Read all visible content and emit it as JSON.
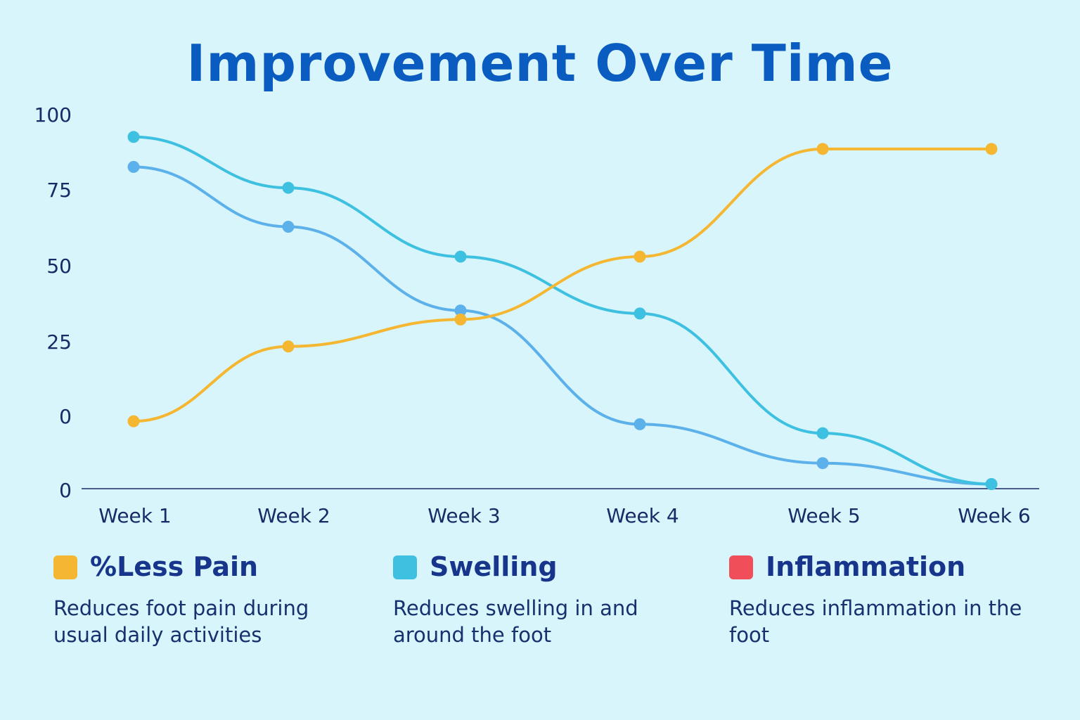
{
  "colors": {
    "pain": "#f5b731",
    "swelling": "#3ec0e0",
    "inflammation": "#f04f5a",
    "third_line": "#5db1ea",
    "axis": "#1a2a66",
    "title": "#0b5cc0"
  },
  "legend": [
    {
      "label": "%Less Pain",
      "desc": "Reduces foot pain  during usual daily activities",
      "color": "#f5b731"
    },
    {
      "label": "Swelling",
      "desc": "Reduces swelling in and around the foot",
      "color": "#3ec0e0"
    },
    {
      "label": "Inflammation",
      "desc": "Reduces inflammation in the foot",
      "color": "#f04f5a"
    }
  ],
  "chart_data": {
    "type": "line",
    "title": "Improvement Over Time",
    "xlabel": "",
    "ylabel": "",
    "categories": [
      "Week 1",
      "Week 2",
      "Week 3",
      "Week 4",
      "Week 5",
      "Week 6"
    ],
    "ytick_labels": [
      "0",
      "0",
      "25",
      "50",
      "75",
      "100"
    ],
    "ylim": [
      -25,
      100
    ],
    "grid": false,
    "series": [
      {
        "name": "%Less Pain",
        "values": [
          -2,
          23,
          32,
          53,
          89,
          89
        ],
        "color": "#f5b731"
      },
      {
        "name": "Swelling",
        "values": [
          93,
          76,
          53,
          34,
          -6,
          -23
        ],
        "color": "#3ec0e0"
      },
      {
        "values": [
          83,
          63,
          35,
          -3,
          -16,
          -23
        ],
        "color": "#5db1ea"
      }
    ]
  }
}
